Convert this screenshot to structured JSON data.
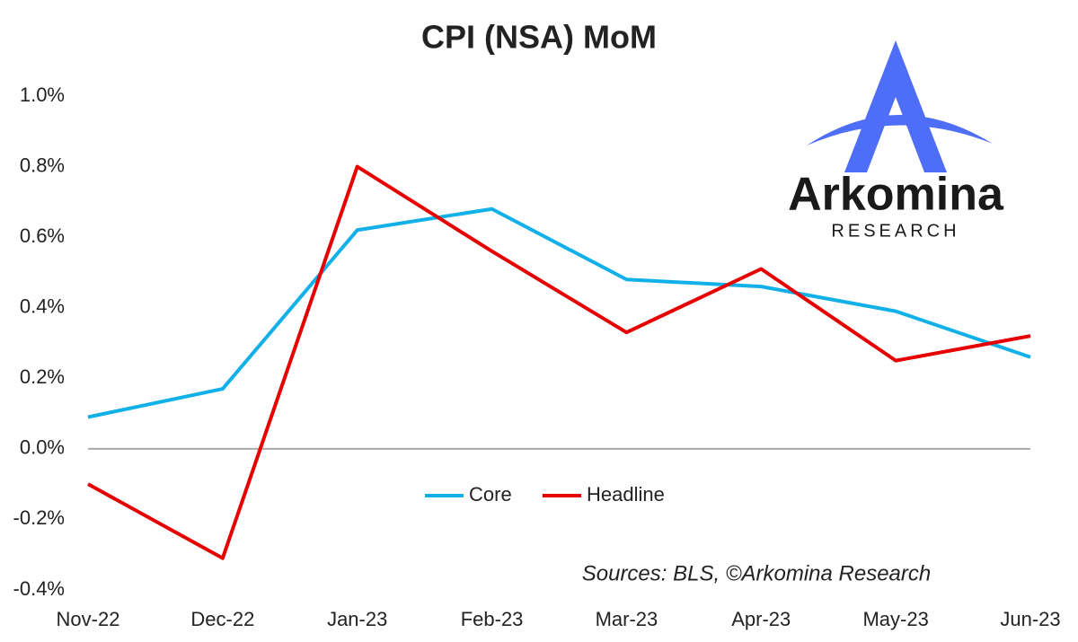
{
  "chart_data": {
    "type": "line",
    "title": "CPI (NSA) MoM",
    "categories": [
      "Nov-22",
      "Dec-22",
      "Jan-23",
      "Feb-23",
      "Mar-23",
      "Apr-23",
      "May-23",
      "Jun-23"
    ],
    "series": [
      {
        "name": "Core",
        "color": "#12b0e8",
        "values": [
          0.09,
          0.17,
          0.62,
          0.68,
          0.48,
          0.46,
          0.39,
          0.26
        ]
      },
      {
        "name": "Headline",
        "color": "#e60000",
        "values": [
          -0.1,
          -0.31,
          0.8,
          0.56,
          0.33,
          0.51,
          0.25,
          0.32
        ]
      }
    ],
    "ylim": [
      -0.4,
      1.0
    ],
    "yticks": [
      {
        "value": -0.4,
        "label": "-0.4%"
      },
      {
        "value": -0.2,
        "label": "-0.2%"
      },
      {
        "value": 0,
        "label": "0.0%"
      },
      {
        "value": 0.2,
        "label": "0.2%"
      },
      {
        "value": 0.4,
        "label": "0.4%"
      },
      {
        "value": 0.6,
        "label": "0.6%"
      },
      {
        "value": 0.8,
        "label": "0.8%"
      },
      {
        "value": 1.0,
        "label": "1.0%"
      }
    ],
    "grid": false,
    "source": "Sources: BLS, ©Arkomina Research"
  },
  "logo": {
    "name": "Arkomina",
    "subtitle": "RESEARCH"
  }
}
